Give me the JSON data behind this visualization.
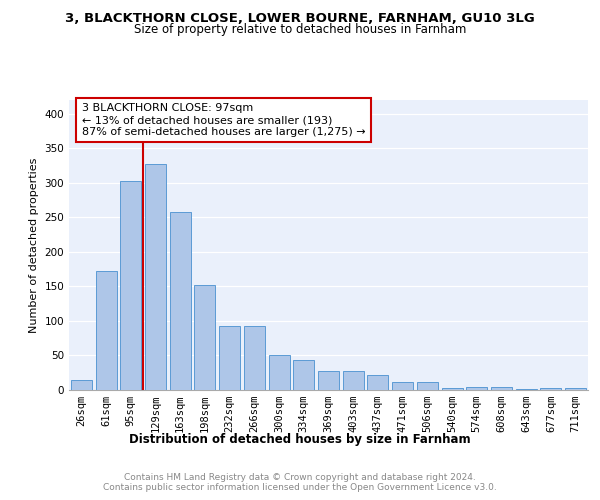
{
  "title1": "3, BLACKTHORN CLOSE, LOWER BOURNE, FARNHAM, GU10 3LG",
  "title2": "Size of property relative to detached houses in Farnham",
  "xlabel": "Distribution of detached houses by size in Farnham",
  "ylabel": "Number of detached properties",
  "categories": [
    "26sqm",
    "61sqm",
    "95sqm",
    "129sqm",
    "163sqm",
    "198sqm",
    "232sqm",
    "266sqm",
    "300sqm",
    "334sqm",
    "369sqm",
    "403sqm",
    "437sqm",
    "471sqm",
    "506sqm",
    "540sqm",
    "574sqm",
    "608sqm",
    "643sqm",
    "677sqm",
    "711sqm"
  ],
  "values": [
    15,
    173,
    303,
    328,
    258,
    152,
    92,
    92,
    50,
    43,
    28,
    28,
    22,
    12,
    11,
    3,
    5,
    5,
    1,
    3,
    3
  ],
  "bar_color": "#aec6e8",
  "bar_edge_color": "#5b9bd5",
  "annotation_line_color": "#cc0000",
  "annotation_box_text": "3 BLACKTHORN CLOSE: 97sqm\n← 13% of detached houses are smaller (193)\n87% of semi-detached houses are larger (1,275) →",
  "annotation_box_color": "white",
  "annotation_box_edge_color": "#cc0000",
  "ylim": [
    0,
    420
  ],
  "yticks": [
    0,
    50,
    100,
    150,
    200,
    250,
    300,
    350,
    400
  ],
  "background_color": "#eaf0fb",
  "footer_text": "Contains HM Land Registry data © Crown copyright and database right 2024.\nContains public sector information licensed under the Open Government Licence v3.0.",
  "title1_fontsize": 9.5,
  "title2_fontsize": 8.5,
  "xlabel_fontsize": 8.5,
  "ylabel_fontsize": 8,
  "tick_fontsize": 7.5,
  "footer_fontsize": 6.5,
  "ann_fontsize": 8
}
